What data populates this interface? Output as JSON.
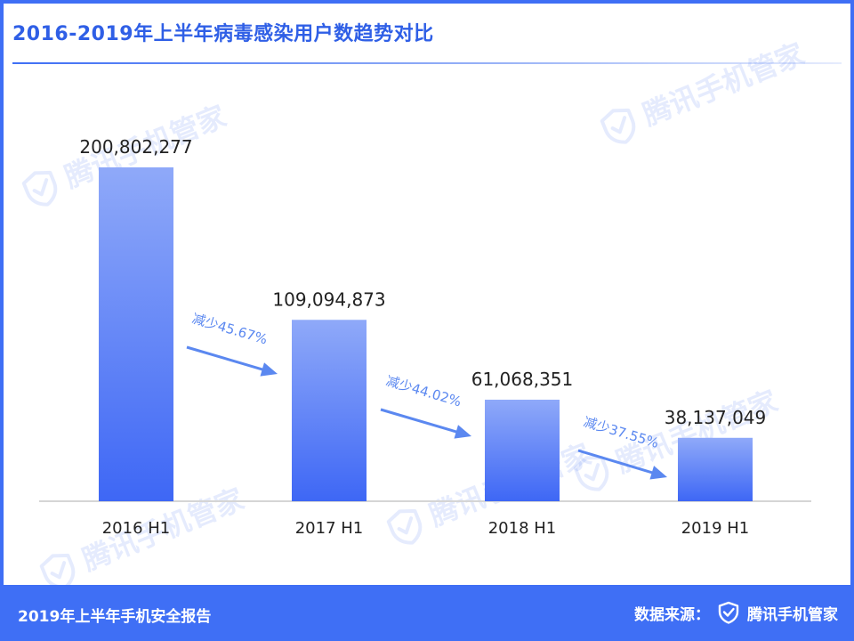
{
  "header": {
    "title": "2016-2019年上半年病毒感染用户数趋势对比"
  },
  "footer": {
    "report_name": "2019年上半年手机安全报告",
    "source_label": "数据来源：",
    "brand_name": "腾讯手机管家"
  },
  "watermark": {
    "text": "腾讯手机管家"
  },
  "colors": {
    "accent": "#3f6ff5",
    "bar_top": "#8fa9f9",
    "bar_bottom": "#3e67f5",
    "arrow": "#5b88f0"
  },
  "chart_data": {
    "type": "bar",
    "title": "2016-2019年上半年病毒感染用户数趋势对比",
    "categories": [
      "2016 H1",
      "2017 H1",
      "2018 H1",
      "2019 H1"
    ],
    "values": [
      200802277,
      109094873,
      61068351,
      38137049
    ],
    "value_labels": [
      "200,802,277",
      "109,094,873",
      "61,068,351",
      "38,137,049"
    ],
    "ylim": [
      0,
      200802277
    ],
    "grid": false,
    "legend": "none",
    "annotations": [
      "减少45.67%",
      "减少44.02%",
      "减少37.55%"
    ]
  }
}
